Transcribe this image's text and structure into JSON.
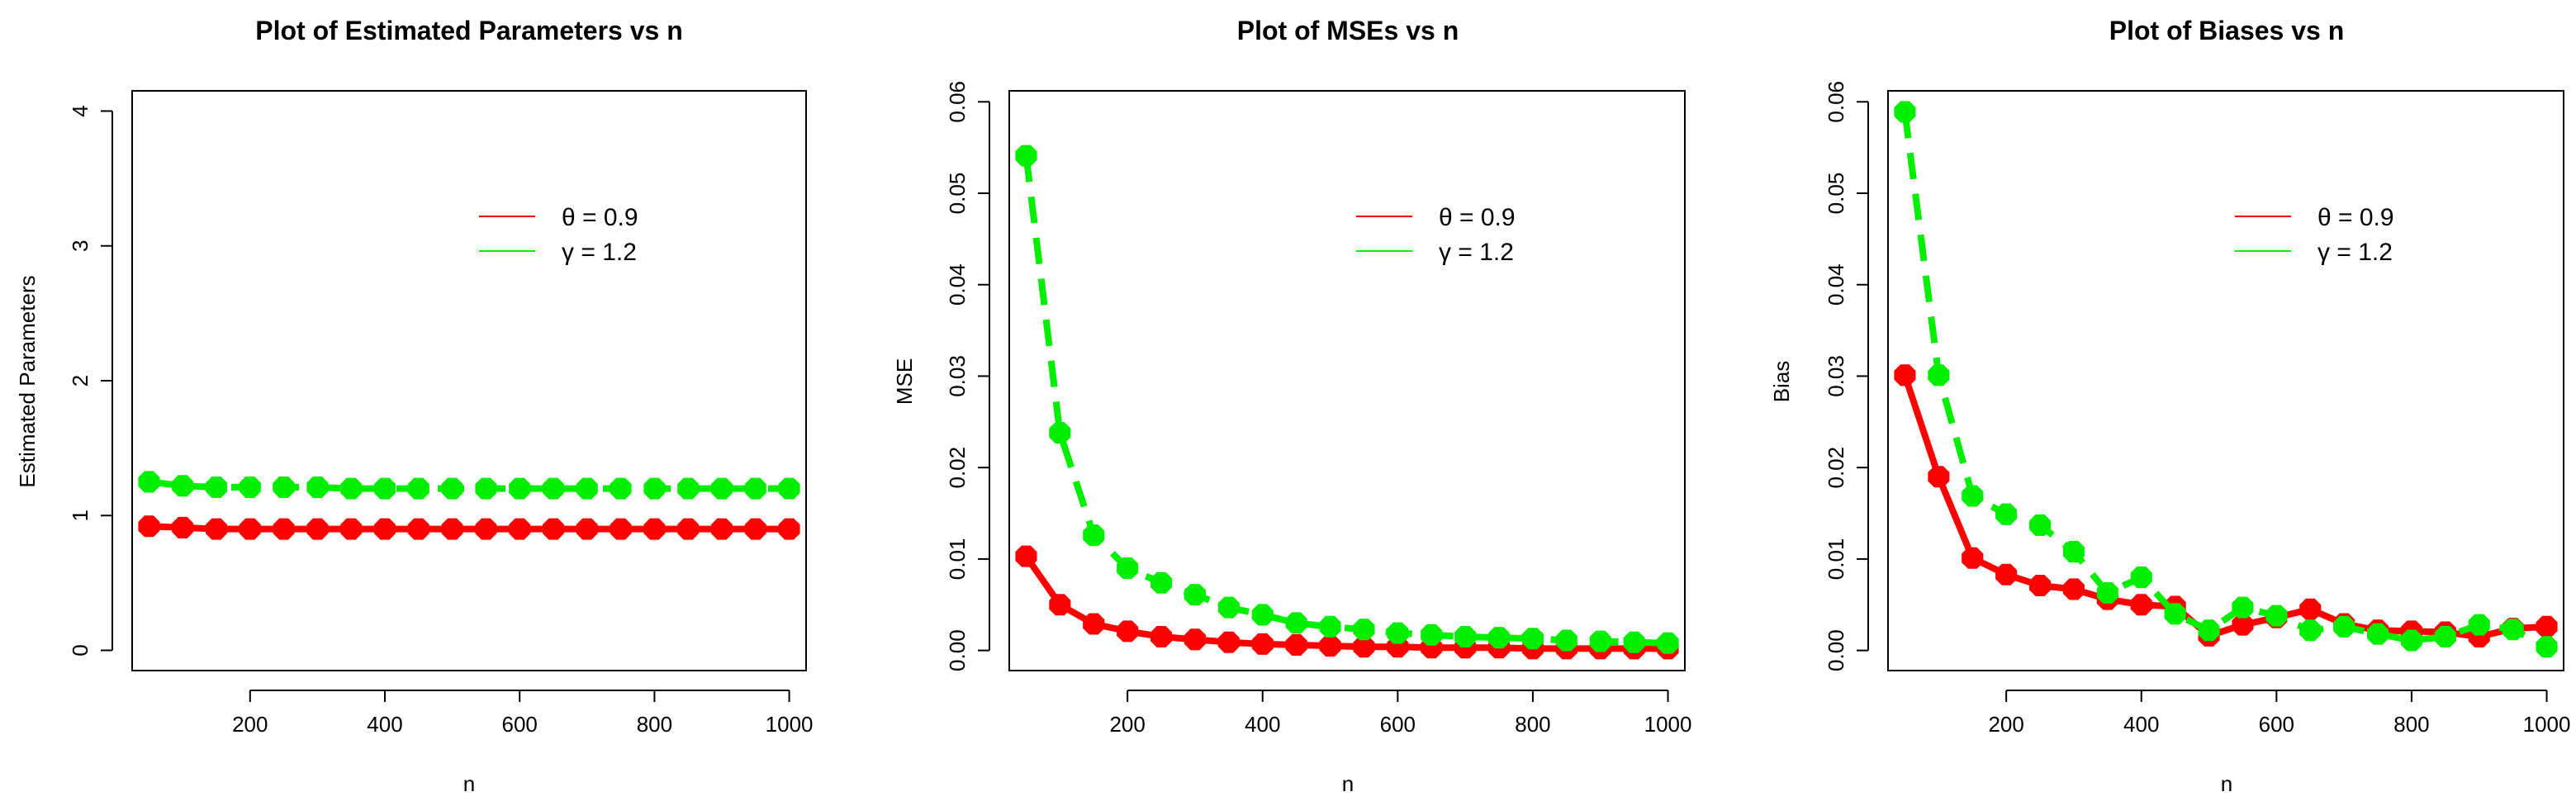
{
  "colors": {
    "theta": "#ff0000",
    "gamma": "#00ee00",
    "frame": "#000000",
    "background": "#ffffff"
  },
  "chart_data": [
    {
      "type": "line",
      "title": "Plot of Estimated Parameters vs n",
      "xlabel": "n",
      "ylabel": "Estimated Parameters",
      "xlim": [
        25,
        1025
      ],
      "ylim": [
        -0.15,
        4.15
      ],
      "xticks": [
        200,
        400,
        600,
        800,
        1000
      ],
      "yticks": [
        0,
        1,
        2,
        3,
        4
      ],
      "x": [
        50,
        100,
        150,
        200,
        250,
        300,
        350,
        400,
        450,
        500,
        550,
        600,
        650,
        700,
        750,
        800,
        850,
        900,
        950,
        1000
      ],
      "series": [
        {
          "name": "θ = 0.9",
          "color": "#ff0000",
          "style": "solid",
          "values": [
            0.92,
            0.91,
            0.9,
            0.9,
            0.9,
            0.9,
            0.9,
            0.9,
            0.9,
            0.9,
            0.9,
            0.9,
            0.9,
            0.9,
            0.9,
            0.9,
            0.9,
            0.9,
            0.9,
            0.9
          ]
        },
        {
          "name": "γ = 1.2",
          "color": "#00ee00",
          "style": "dashed",
          "values": [
            1.25,
            1.22,
            1.21,
            1.21,
            1.21,
            1.21,
            1.2,
            1.2,
            1.2,
            1.2,
            1.2,
            1.2,
            1.2,
            1.2,
            1.2,
            1.2,
            1.2,
            1.2,
            1.2,
            1.2
          ]
        }
      ],
      "legend": [
        {
          "label": "θ = 0.9",
          "color": "#ff0000"
        },
        {
          "label": "γ = 1.2",
          "color": "#00ee00"
        }
      ]
    },
    {
      "type": "line",
      "title": "Plot of MSEs vs n",
      "xlabel": "n",
      "ylabel": "MSE",
      "xlim": [
        25,
        1025
      ],
      "ylim": [
        -0.0022,
        0.0612
      ],
      "xticks": [
        200,
        400,
        600,
        800,
        1000
      ],
      "yticks": [
        0.0,
        0.01,
        0.02,
        0.03,
        0.04,
        0.05,
        0.06
      ],
      "ytick_labels": [
        "0.00",
        "0.01",
        "0.02",
        "0.03",
        "0.04",
        "0.05",
        "0.06"
      ],
      "x": [
        50,
        100,
        150,
        200,
        250,
        300,
        350,
        400,
        450,
        500,
        550,
        600,
        650,
        700,
        750,
        800,
        850,
        900,
        950,
        1000
      ],
      "series": [
        {
          "name": "θ = 0.9",
          "color": "#ff0000",
          "style": "solid",
          "values": [
            0.0103,
            0.005,
            0.0029,
            0.0021,
            0.0015,
            0.0012,
            0.0009,
            0.0007,
            0.0006,
            0.0005,
            0.0004,
            0.0004,
            0.0003,
            0.0003,
            0.0003,
            0.0002,
            0.0002,
            0.0002,
            0.0002,
            0.0002
          ]
        },
        {
          "name": "γ = 1.2",
          "color": "#00ee00",
          "style": "dashed",
          "values": [
            0.0541,
            0.0238,
            0.0126,
            0.009,
            0.0074,
            0.0061,
            0.0047,
            0.0039,
            0.003,
            0.0026,
            0.0023,
            0.0019,
            0.0017,
            0.0015,
            0.0014,
            0.0013,
            0.0011,
            0.001,
            0.0009,
            0.0008
          ]
        }
      ],
      "legend": [
        {
          "label": "θ = 0.9",
          "color": "#ff0000"
        },
        {
          "label": "γ = 1.2",
          "color": "#00ee00"
        }
      ]
    },
    {
      "type": "line",
      "title": "Plot of Biases vs n",
      "xlabel": "n",
      "ylabel": "Bias",
      "xlim": [
        25,
        1025
      ],
      "ylim": [
        -0.0022,
        0.0612
      ],
      "xticks": [
        200,
        400,
        600,
        800,
        1000
      ],
      "yticks": [
        0.0,
        0.01,
        0.02,
        0.03,
        0.04,
        0.05,
        0.06
      ],
      "ytick_labels": [
        "0.00",
        "0.01",
        "0.02",
        "0.03",
        "0.04",
        "0.05",
        "0.06"
      ],
      "x": [
        50,
        100,
        150,
        200,
        250,
        300,
        350,
        400,
        450,
        500,
        550,
        600,
        650,
        700,
        750,
        800,
        850,
        900,
        950,
        1000
      ],
      "series": [
        {
          "name": "θ = 0.9",
          "color": "#ff0000",
          "style": "solid",
          "values": [
            0.0301,
            0.019,
            0.0101,
            0.0083,
            0.0071,
            0.0067,
            0.0056,
            0.005,
            0.0048,
            0.0016,
            0.0028,
            0.0036,
            0.0045,
            0.0029,
            0.0022,
            0.0021,
            0.002,
            0.0015,
            0.0024,
            0.0026
          ]
        },
        {
          "name": "γ = 1.2",
          "color": "#00ee00",
          "style": "dashed",
          "values": [
            0.0589,
            0.0301,
            0.0169,
            0.0149,
            0.0137,
            0.0108,
            0.0063,
            0.008,
            0.004,
            0.0022,
            0.0047,
            0.0038,
            0.0022,
            0.0026,
            0.0018,
            0.0011,
            0.0015,
            0.0028,
            0.0023,
            0.0004
          ]
        }
      ],
      "legend": [
        {
          "label": "θ = 0.9",
          "color": "#ff0000"
        },
        {
          "label": "γ = 1.2",
          "color": "#00ee00"
        }
      ]
    }
  ]
}
